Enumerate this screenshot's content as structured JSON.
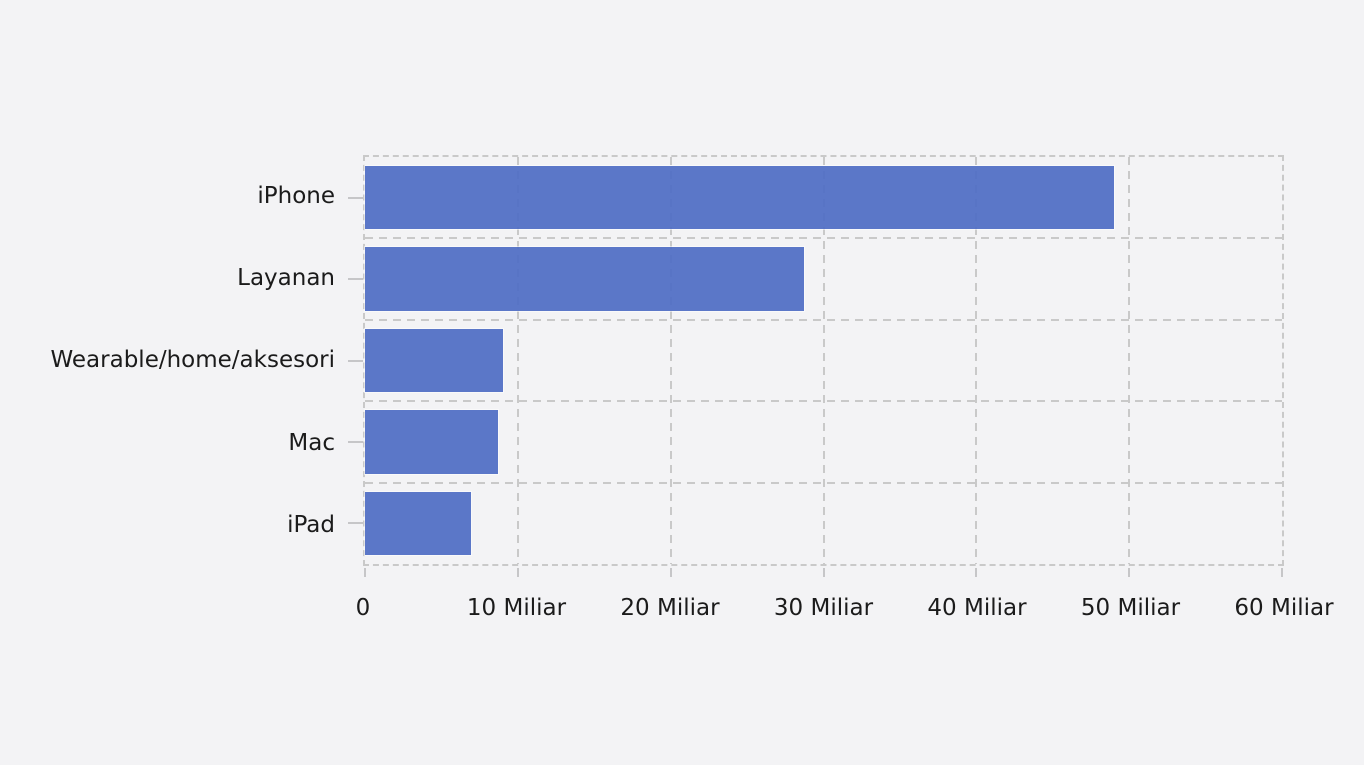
{
  "page": {
    "background_color": "#f3f3f5"
  },
  "chart_data": {
    "type": "bar",
    "orientation": "horizontal",
    "title": "",
    "xlabel": "",
    "ylabel": "",
    "unit": "Miliar",
    "categories": [
      "iPhone",
      "Layanan",
      "Wearable/home/aksesori",
      "Mac",
      "iPad"
    ],
    "values": [
      49.03,
      28.75,
      9.01,
      8.73,
      6.95
    ],
    "xlim": [
      0,
      60
    ],
    "x_ticks": [
      {
        "value": 0,
        "label": "0"
      },
      {
        "value": 10,
        "label": "10 Miliar"
      },
      {
        "value": 20,
        "label": "20 Miliar"
      },
      {
        "value": 30,
        "label": "30 Miliar"
      },
      {
        "value": 40,
        "label": "40 Miliar"
      },
      {
        "value": 50,
        "label": "50 Miliar"
      },
      {
        "value": 60,
        "label": "60 Miliar"
      }
    ],
    "grid": {
      "style": "dashed",
      "vertical": true,
      "horizontal": true,
      "frame": true
    },
    "legend": false,
    "colors": {
      "bar": "#506ec5",
      "bar_rendered": "#5b77c8",
      "gridline": "#c9c9c9",
      "tick": "#c6c6c8",
      "text": "#1b1b1b",
      "background": "#f3f3f5"
    }
  }
}
